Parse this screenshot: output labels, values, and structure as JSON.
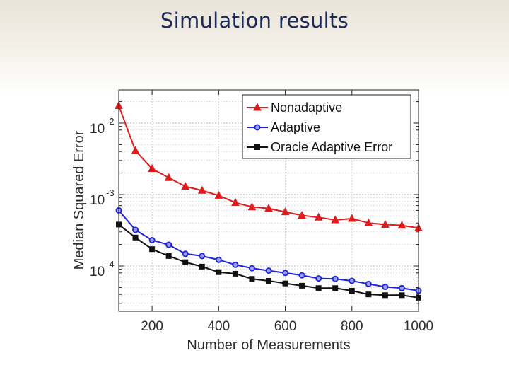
{
  "slide": {
    "title": "Simulation results"
  },
  "chart_data": {
    "type": "line",
    "title": "",
    "xlabel": "Number of Measurements",
    "ylabel": "Median Squared Error",
    "yscale": "log",
    "xlim": [
      100,
      1000
    ],
    "ylim": [
      2e-05,
      0.03
    ],
    "x_ticks": [
      200,
      400,
      600,
      800,
      1000
    ],
    "y_ticks": [
      {
        "value": 0.0001,
        "base": "10",
        "exp": "-4"
      },
      {
        "value": 0.001,
        "base": "10",
        "exp": "-3"
      },
      {
        "value": 0.01,
        "base": "10",
        "exp": "-2"
      }
    ],
    "grid": true,
    "legend_position": "top-right",
    "x": [
      100,
      150,
      200,
      250,
      300,
      350,
      400,
      450,
      500,
      550,
      600,
      650,
      700,
      750,
      800,
      850,
      900,
      950,
      1000
    ],
    "series": [
      {
        "name": "Nonadaptive",
        "color": "#e01b1b",
        "marker": "triangle",
        "values": [
          0.0175,
          0.0041,
          0.0023,
          0.00172,
          0.0013,
          0.00114,
          0.00097,
          0.00077,
          0.00067,
          0.00064,
          0.00057,
          0.00051,
          0.00048,
          0.00044,
          0.00046,
          0.0004,
          0.00038,
          0.00037,
          0.00034
        ]
      },
      {
        "name": "Adaptive",
        "color": "#1e22d9",
        "marker": "circle",
        "values": [
          0.0006,
          0.00032,
          0.00023,
          0.000198,
          0.000148,
          0.000138,
          0.000122,
          0.000104,
          9.3e-05,
          8.6e-05,
          8e-05,
          7.4e-05,
          6.7e-05,
          6.6e-05,
          6.2e-05,
          5.6e-05,
          5.1e-05,
          4.9e-05,
          4.5e-05
        ]
      },
      {
        "name": "Oracle Adaptive Error",
        "color": "#111111",
        "marker": "square",
        "values": [
          0.00038,
          0.00025,
          0.000172,
          0.000138,
          0.000113,
          9.8e-05,
          8.2e-05,
          7.8e-05,
          6.6e-05,
          6.2e-05,
          5.7e-05,
          5.3e-05,
          4.9e-05,
          4.9e-05,
          4.5e-05,
          4e-05,
          3.9e-05,
          3.9e-05,
          3.6e-05
        ]
      }
    ]
  }
}
